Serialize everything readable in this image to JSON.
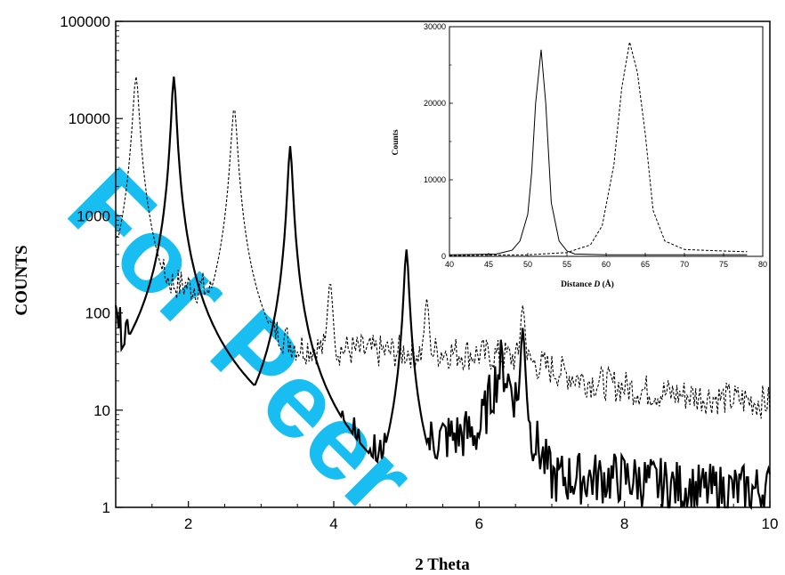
{
  "watermark": {
    "text": "For Peer",
    "color": "#00b7f0"
  },
  "chart_data": [
    {
      "type": "line",
      "title": "",
      "xlabel": "2 Theta",
      "ylabel": "COUNTS",
      "xlim": [
        1,
        10
      ],
      "ylim": [
        1,
        100000
      ],
      "yscale": "log",
      "xticks": [
        "2",
        "4",
        "6",
        "8",
        "10"
      ],
      "yticks": [
        "1",
        "10",
        "100",
        "1000",
        "10000",
        "100000"
      ],
      "grid": false,
      "series": [
        {
          "style": "solid",
          "peaks": [
            {
              "x": 1.8,
              "y": 27000
            },
            {
              "x": 3.4,
              "y": 5200
            },
            {
              "x": 5.0,
              "y": 450
            },
            {
              "x": 6.6,
              "y": 70
            }
          ],
          "baseline_points": [
            {
              "x": 1.0,
              "y": 90
            },
            {
              "x": 1.4,
              "y": 25
            },
            {
              "x": 2.2,
              "y": 18
            },
            {
              "x": 2.6,
              "y": 8
            },
            {
              "x": 3.0,
              "y": 6
            },
            {
              "x": 4.0,
              "y": 8
            },
            {
              "x": 4.6,
              "y": 3
            },
            {
              "x": 5.4,
              "y": 5
            },
            {
              "x": 6.0,
              "y": 6
            },
            {
              "x": 6.3,
              "y": 30
            },
            {
              "x": 7.0,
              "y": 2
            },
            {
              "x": 8.0,
              "y": 2
            },
            {
              "x": 9.0,
              "y": 1.5
            },
            {
              "x": 10.0,
              "y": 1.5
            }
          ]
        },
        {
          "style": "dashed",
          "peaks": [
            {
              "x": 1.28,
              "y": 27000
            },
            {
              "x": 2.63,
              "y": 13000
            },
            {
              "x": 3.95,
              "y": 210
            },
            {
              "x": 5.28,
              "y": 140
            },
            {
              "x": 6.6,
              "y": 120
            }
          ],
          "baseline_points": [
            {
              "x": 1.0,
              "y": 600
            },
            {
              "x": 1.8,
              "y": 200
            },
            {
              "x": 2.2,
              "y": 180
            },
            {
              "x": 3.0,
              "y": 80
            },
            {
              "x": 3.5,
              "y": 45
            },
            {
              "x": 4.5,
              "y": 40
            },
            {
              "x": 5.5,
              "y": 40
            },
            {
              "x": 6.5,
              "y": 35
            },
            {
              "x": 7.5,
              "y": 20
            },
            {
              "x": 8.5,
              "y": 15
            },
            {
              "x": 10.0,
              "y": 12
            }
          ]
        }
      ]
    },
    {
      "type": "line",
      "title": "",
      "xlabel": "Distance D (Å)",
      "xlabel_main": "Distance ",
      "xlabel_italic": "D",
      "xlabel_unit": " (Å)",
      "ylabel": "Counts",
      "xlim": [
        40,
        80
      ],
      "ylim": [
        0,
        30000
      ],
      "xticks": [
        "40",
        "45",
        "50",
        "55",
        "60",
        "65",
        "70",
        "75",
        "80"
      ],
      "yticks": [
        "0",
        "10000",
        "20000",
        "30000"
      ],
      "grid": false,
      "series": [
        {
          "style": "solid",
          "x": [
            40,
            46,
            48,
            49,
            50,
            50.5,
            51,
            51.7,
            52.3,
            53,
            54,
            55,
            56,
            60,
            70,
            78
          ],
          "values": [
            200,
            300,
            800,
            2000,
            5500,
            11000,
            20000,
            27000,
            20000,
            7000,
            2000,
            700,
            300,
            200,
            200,
            200
          ]
        },
        {
          "style": "dashed",
          "x": [
            40,
            50,
            55,
            58,
            59.5,
            61,
            62,
            63,
            64,
            65,
            66,
            67.5,
            70,
            75,
            78
          ],
          "values": [
            100,
            200,
            500,
            1500,
            4000,
            12000,
            22000,
            28000,
            24000,
            16000,
            6000,
            2000,
            900,
            700,
            600
          ]
        }
      ]
    }
  ]
}
